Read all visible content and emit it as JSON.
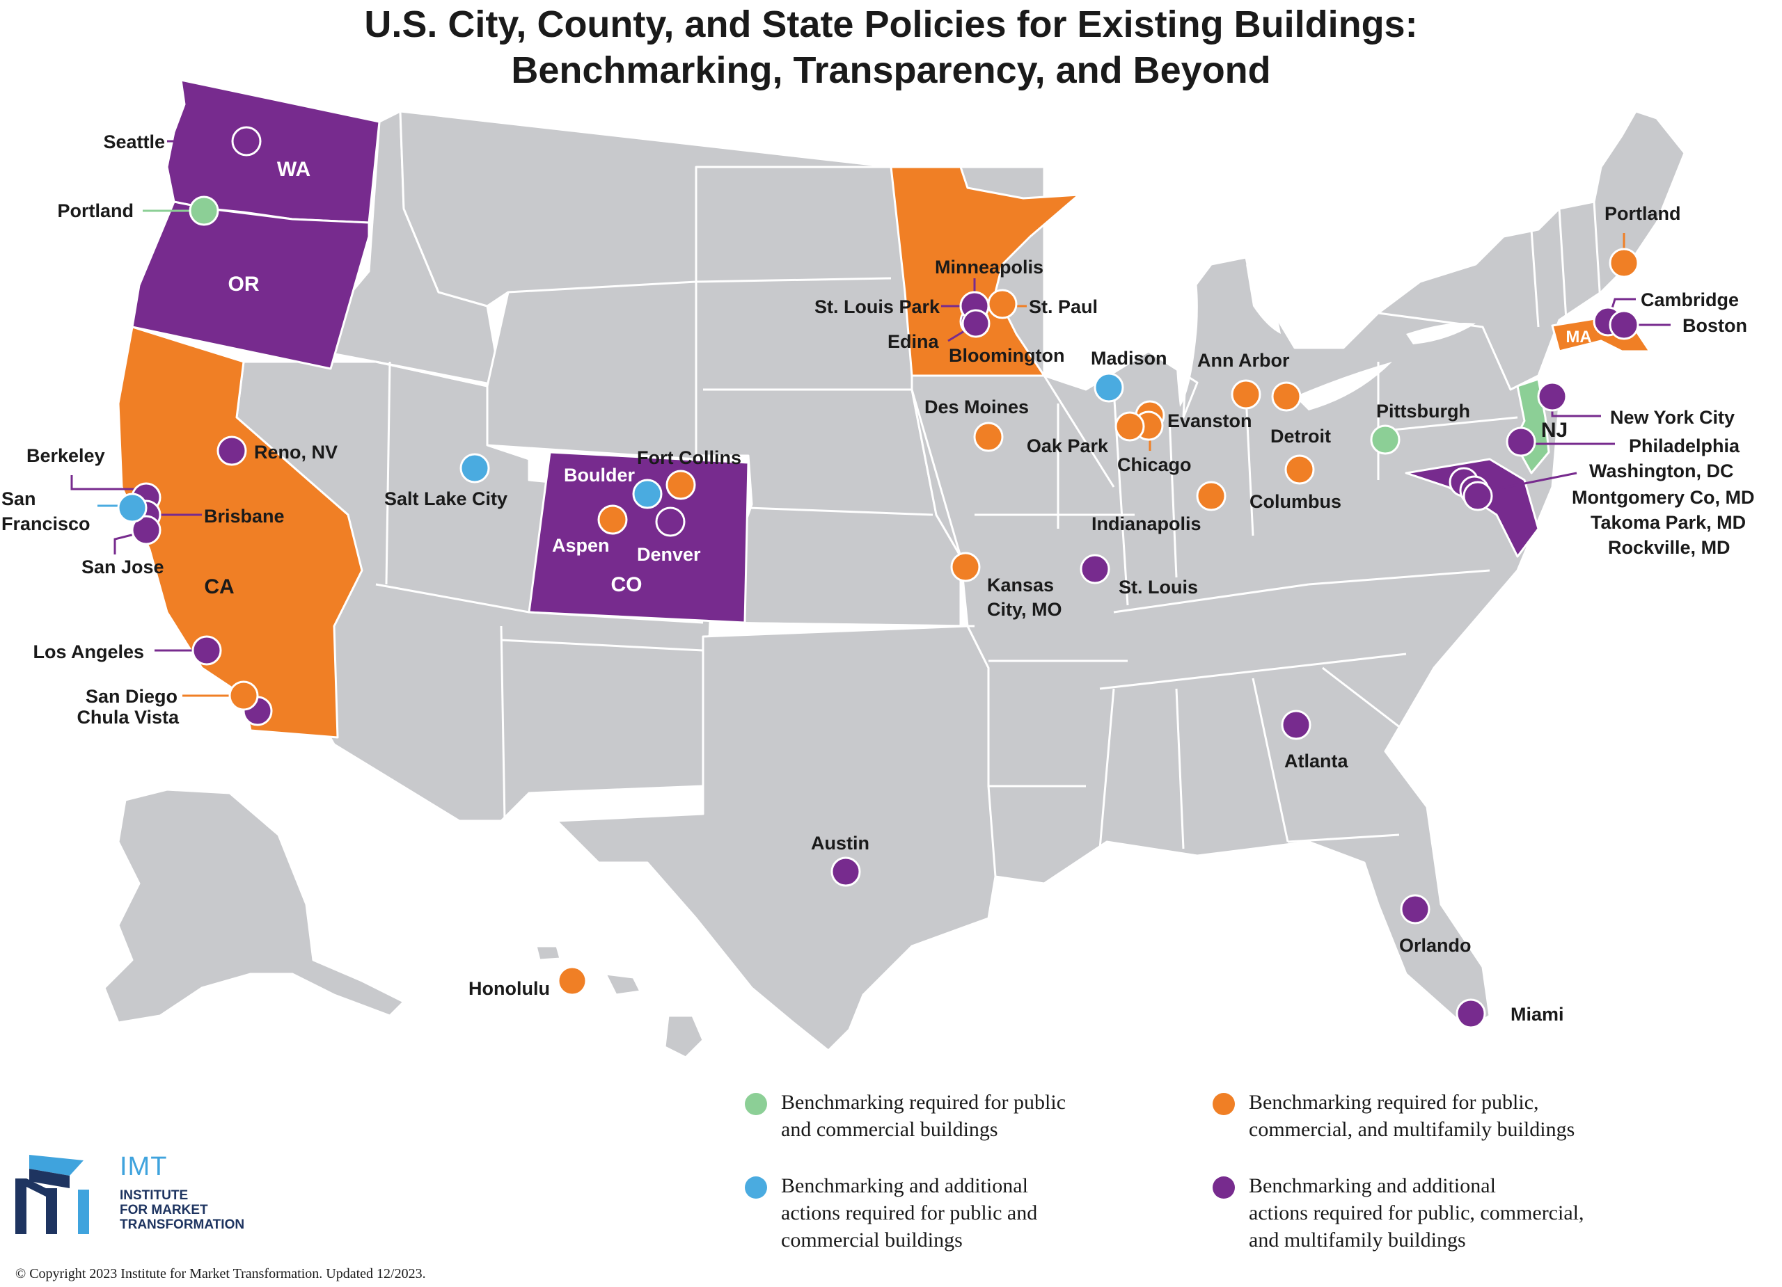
{
  "title": {
    "line1": "U.S. City, County, and State Policies for Existing Buildings:",
    "line2": "Benchmarking, Transparency, and Beyond"
  },
  "colors": {
    "green": "#8ccf96",
    "blue": "#4aabe0",
    "orange": "#f07f25",
    "purple": "#772b8e",
    "base_state": "#c8c9cc",
    "water_bg": "#ffffff"
  },
  "states": {
    "WA": "WA",
    "OR": "OR",
    "CA": "CA",
    "CO": "CO",
    "MA": "MA",
    "NJ": "NJ"
  },
  "cities": {
    "seattle": "Seattle",
    "portland_or": "Portland",
    "berkeley": "Berkeley",
    "san_francisco_1": "San",
    "san_francisco_2": "Francisco",
    "brisbane": "Brisbane",
    "san_jose": "San Jose",
    "reno": "Reno, NV",
    "los_angeles": "Los Angeles",
    "san_diego": "San Diego",
    "chula_vista": "Chula Vista",
    "salt_lake_city": "Salt Lake City",
    "boulder": "Boulder",
    "fort_collins": "Fort Collins",
    "aspen": "Aspen",
    "denver": "Denver",
    "honolulu": "Honolulu",
    "austin": "Austin",
    "minneapolis": "Minneapolis",
    "st_louis_park": "St. Louis Park",
    "st_paul": "St. Paul",
    "edina": "Edina",
    "bloomington": "Bloomington",
    "des_moines": "Des Moines",
    "kansas_city_1": "Kansas",
    "kansas_city_2": "City, MO",
    "st_louis": "St. Louis",
    "madison": "Madison",
    "evanston": "Evanston",
    "oak_park": "Oak Park",
    "chicago": "Chicago",
    "indianapolis": "Indianapolis",
    "ann_arbor": "Ann Arbor",
    "detroit": "Detroit",
    "columbus": "Columbus",
    "pittsburgh": "Pittsburgh",
    "atlanta": "Atlanta",
    "orlando": "Orlando",
    "miami": "Miami",
    "portland_me": "Portland",
    "cambridge": "Cambridge",
    "boston": "Boston",
    "new_york_city": "New York City",
    "philadelphia": "Philadelphia",
    "washington_dc": "Washington, DC",
    "montgomery_co": "Montgomery Co, MD",
    "takoma_park": "Takoma Park, MD",
    "rockville": "Rockville, MD"
  },
  "legend": {
    "green": {
      "line1": "Benchmarking required for public",
      "line2": "and commercial buildings"
    },
    "orange": {
      "line1": "Benchmarking required for public,",
      "line2": "commercial, and multifamily buildings"
    },
    "blue": {
      "line1": "Benchmarking and additional",
      "line2": "actions required for public and",
      "line3": "commercial buildings"
    },
    "purple": {
      "line1": "Benchmarking and additional",
      "line2": "actions required for public, commercial,",
      "line3": "and multifamily buildings"
    }
  },
  "logo": {
    "abbr": "IMT",
    "line1": "INSTITUTE",
    "line2": "FOR MARKET",
    "line3": "TRANSFORMATION"
  },
  "copyright": "© Copyright 2023 Institute for Market Transformation. Updated 12/2023."
}
